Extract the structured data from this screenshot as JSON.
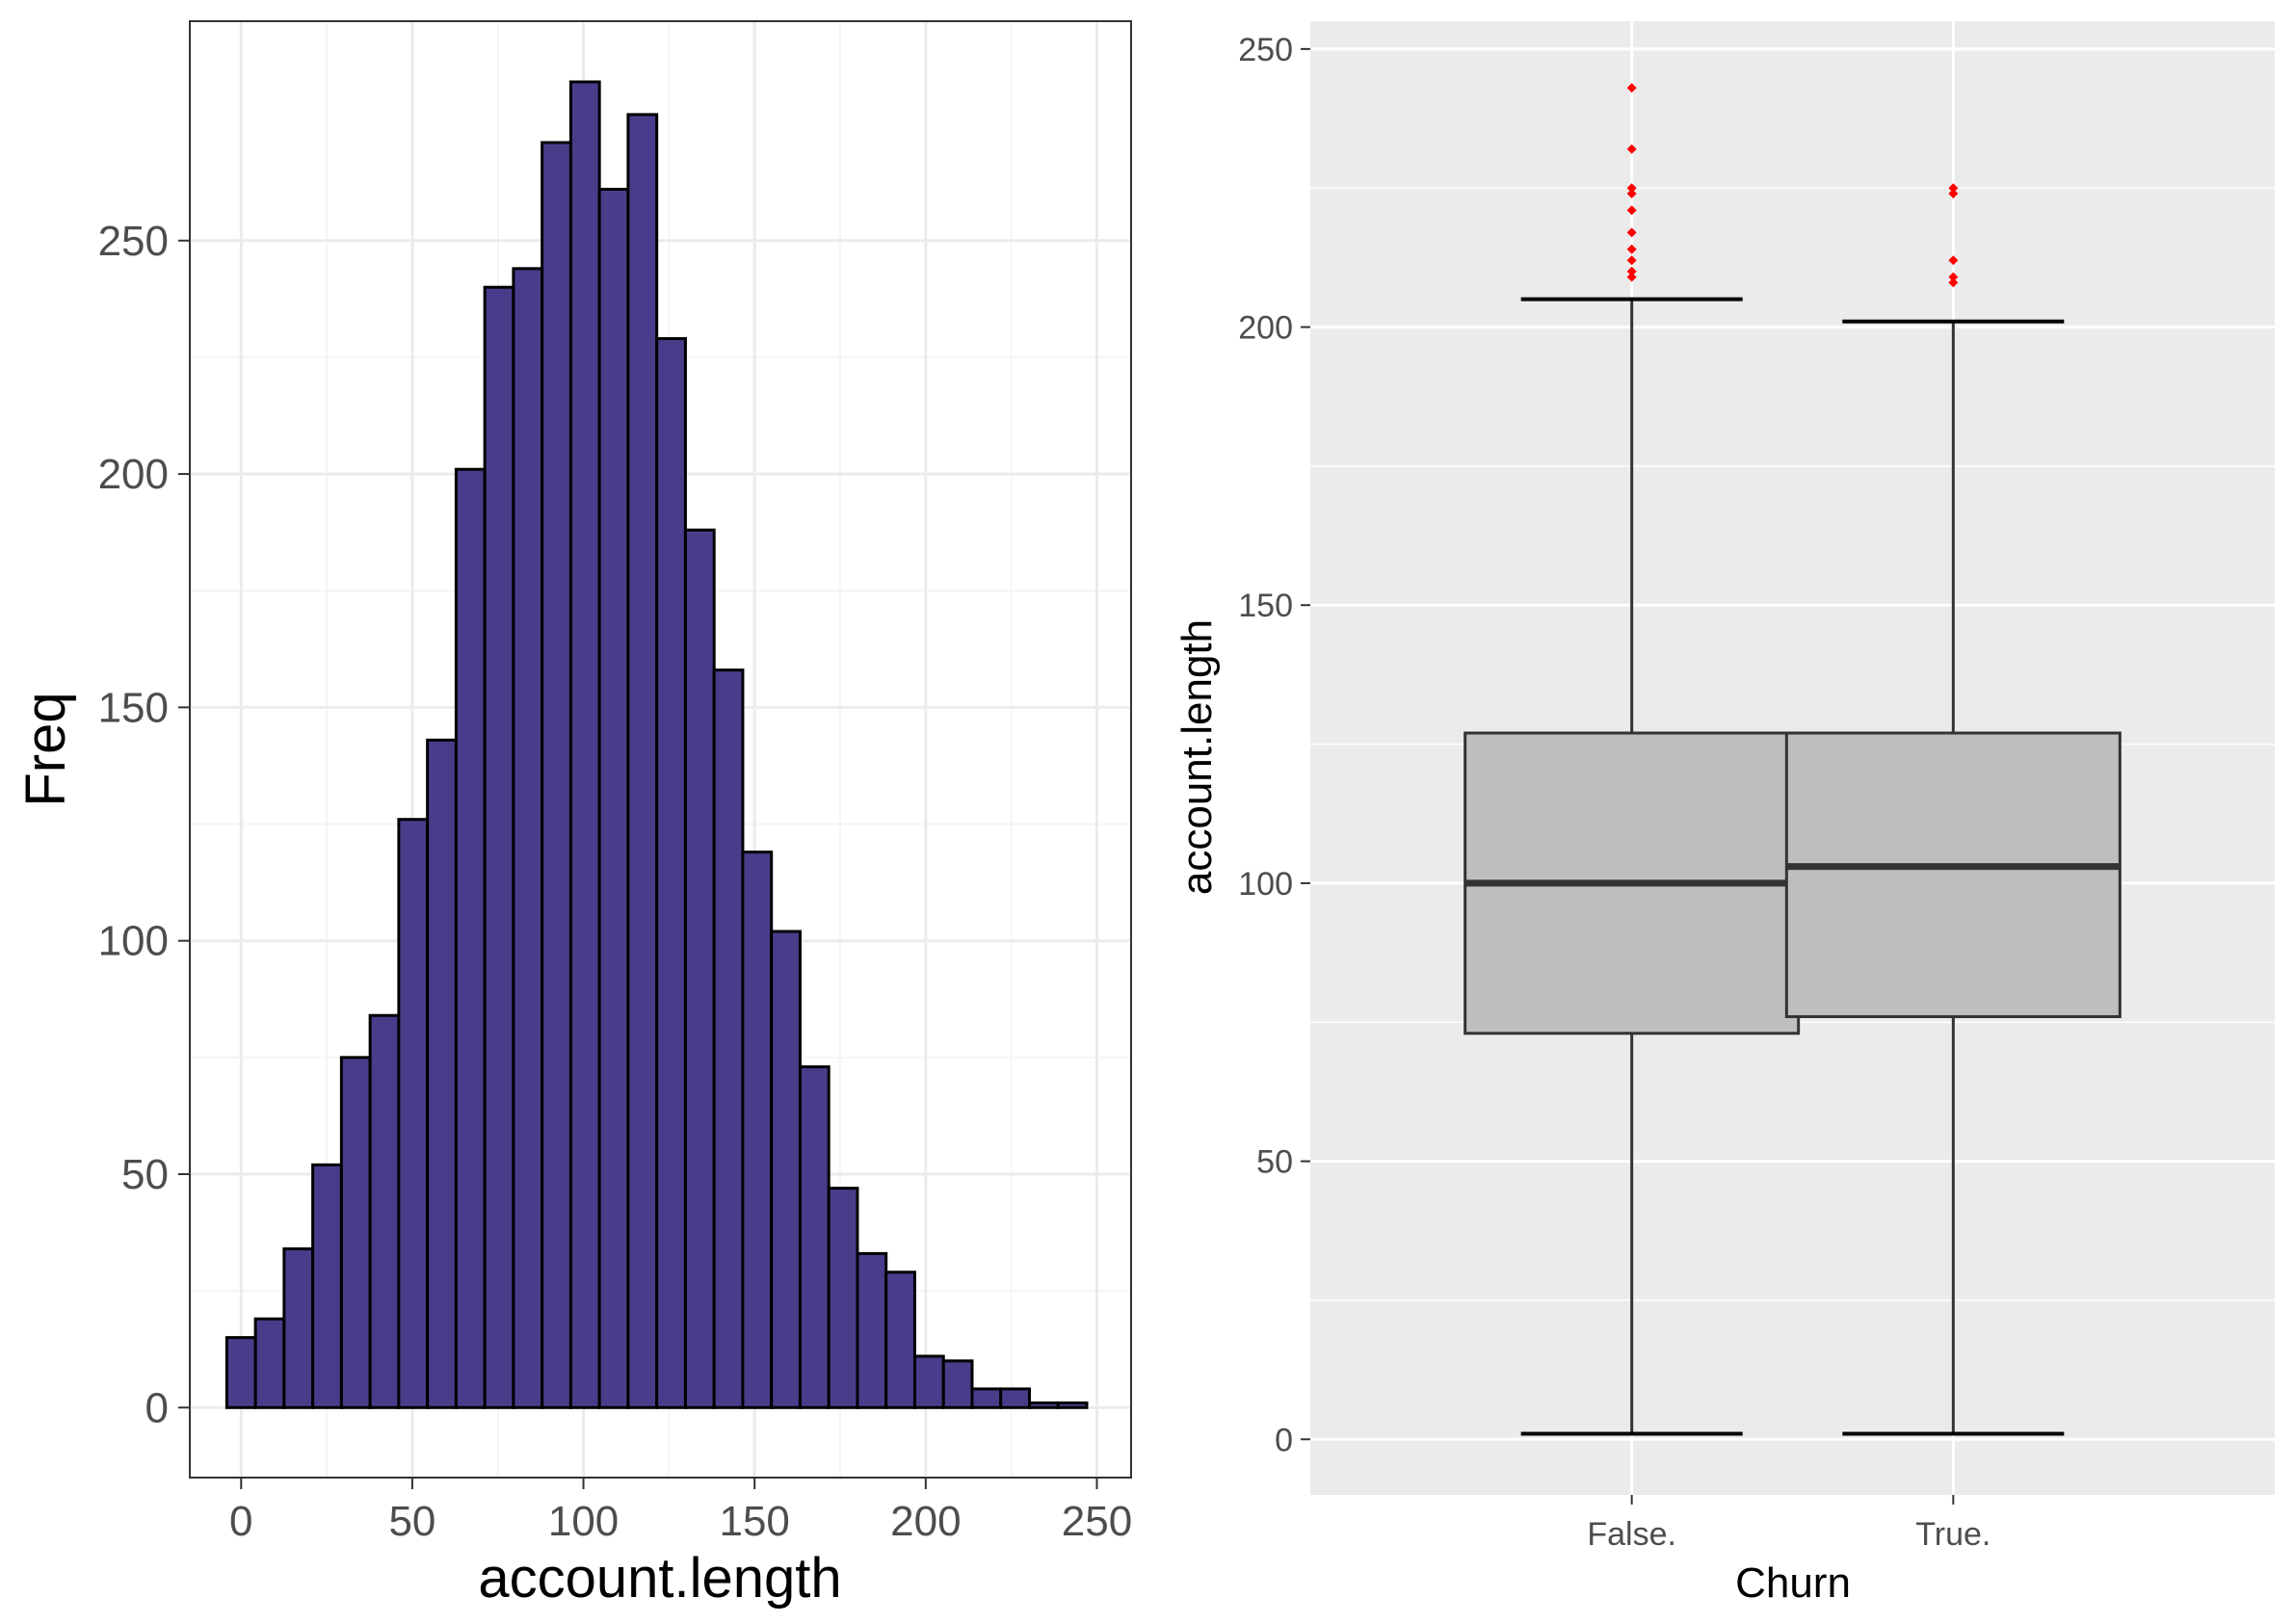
{
  "chart_data": [
    {
      "type": "bar",
      "subtype": "histogram",
      "xlabel": "account.length",
      "ylabel": "Freq",
      "xlim": [
        -15,
        260
      ],
      "ylim": [
        -15,
        297
      ],
      "xticks": [
        0,
        50,
        100,
        150,
        200,
        250
      ],
      "yticks": [
        0,
        50,
        100,
        150,
        200,
        250
      ],
      "bin_width": 8.375,
      "bin_start": -4.2,
      "counts": [
        15,
        19,
        34,
        52,
        75,
        84,
        126,
        143,
        201,
        240,
        244,
        271,
        284,
        261,
        277,
        229,
        188,
        158,
        119,
        102,
        73,
        47,
        33,
        29,
        11,
        10,
        4,
        4,
        1,
        1
      ],
      "fill_color": "#483d8b",
      "border_color": "#000000",
      "background": "#ffffff",
      "grid": true
    },
    {
      "type": "box",
      "xlabel": "Churn",
      "ylabel": "account.length",
      "ylim": [
        -10,
        255
      ],
      "yticks": [
        0,
        50,
        100,
        150,
        200,
        250
      ],
      "categories": [
        "False.",
        "True."
      ],
      "boxes": [
        {
          "min": 1,
          "q1": 73,
          "median": 100,
          "q3": 127,
          "max": 205,
          "outliers": [
            209,
            210,
            212,
            214,
            217,
            221,
            224,
            225,
            232,
            243
          ]
        },
        {
          "min": 1,
          "q1": 76,
          "median": 103,
          "q3": 127,
          "max": 201,
          "outliers": [
            208,
            209,
            212,
            224,
            225
          ]
        }
      ],
      "box_fill": "#bebebe",
      "outlier_color": "#ff0000",
      "background": "#ebebeb",
      "grid": true
    }
  ]
}
